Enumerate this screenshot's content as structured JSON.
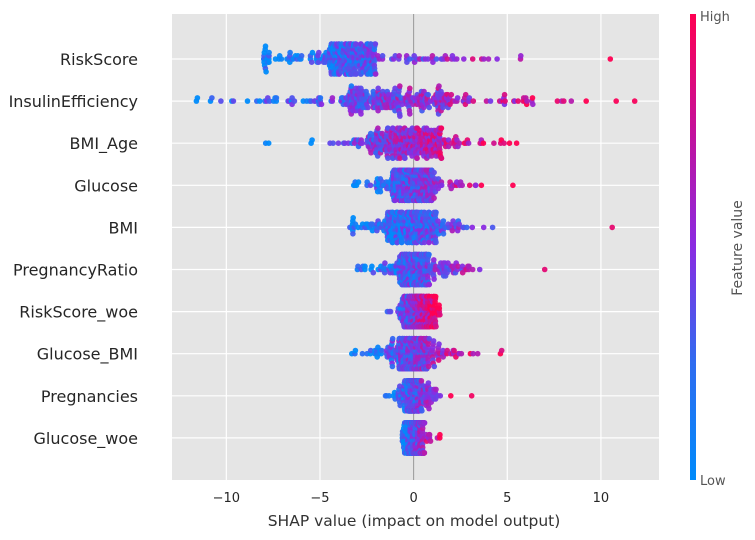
{
  "chart_data": {
    "type": "scatter",
    "subtype": "shap-beeswarm",
    "title": "",
    "xlabel": "SHAP value (impact on model output)",
    "xlim": [
      -12.9,
      13.1
    ],
    "xticks": [
      -10,
      -5,
      0,
      5,
      10
    ],
    "xtick_labels": [
      "−10",
      "−5",
      "0",
      "5",
      "10"
    ],
    "grid": true,
    "colors": {
      "low": "#008bfb",
      "mid": "#8a2be2",
      "high": "#ff0052",
      "background": "#e5e5e5"
    },
    "colorbar": {
      "title": "Feature value",
      "high_label": "High",
      "low_label": "Low"
    },
    "features": [
      {
        "name": "RiskScore",
        "min": -8.0,
        "max": 10.5,
        "core": [
          -4.5,
          -2.0
        ],
        "spread": 3.8
      },
      {
        "name": "InsulinEfficiency",
        "min": -11.6,
        "max": 11.8,
        "core": [
          -3.5,
          2.0
        ],
        "spread": 4.8
      },
      {
        "name": "BMI_Age",
        "min": -7.9,
        "max": 5.5,
        "core": [
          -2.5,
          1.5
        ],
        "spread": 2.2
      },
      {
        "name": "Glucose",
        "min": -3.2,
        "max": 5.3,
        "core": [
          -1.2,
          1.0
        ],
        "spread": 1.5
      },
      {
        "name": "BMI",
        "min": -3.4,
        "max": 10.6,
        "core": [
          -1.5,
          1.2
        ],
        "spread": 1.5
      },
      {
        "name": "PregnancyRatio",
        "min": -3.0,
        "max": 7.0,
        "core": [
          -0.8,
          0.8
        ],
        "spread": 1.4
      },
      {
        "name": "RiskScore_woe",
        "min": -1.4,
        "max": 1.4,
        "core": [
          -0.6,
          1.2
        ],
        "spread": 0.6
      },
      {
        "name": "Glucose_BMI",
        "min": -3.3,
        "max": 4.7,
        "core": [
          -0.8,
          0.8
        ],
        "spread": 1.3
      },
      {
        "name": "Pregnancies",
        "min": -1.5,
        "max": 3.1,
        "core": [
          -0.3,
          0.3
        ],
        "spread": 0.6
      },
      {
        "name": "Glucose_woe",
        "min": -0.6,
        "max": 1.4,
        "core": [
          -0.4,
          0.6
        ],
        "spread": 0.5
      }
    ]
  }
}
